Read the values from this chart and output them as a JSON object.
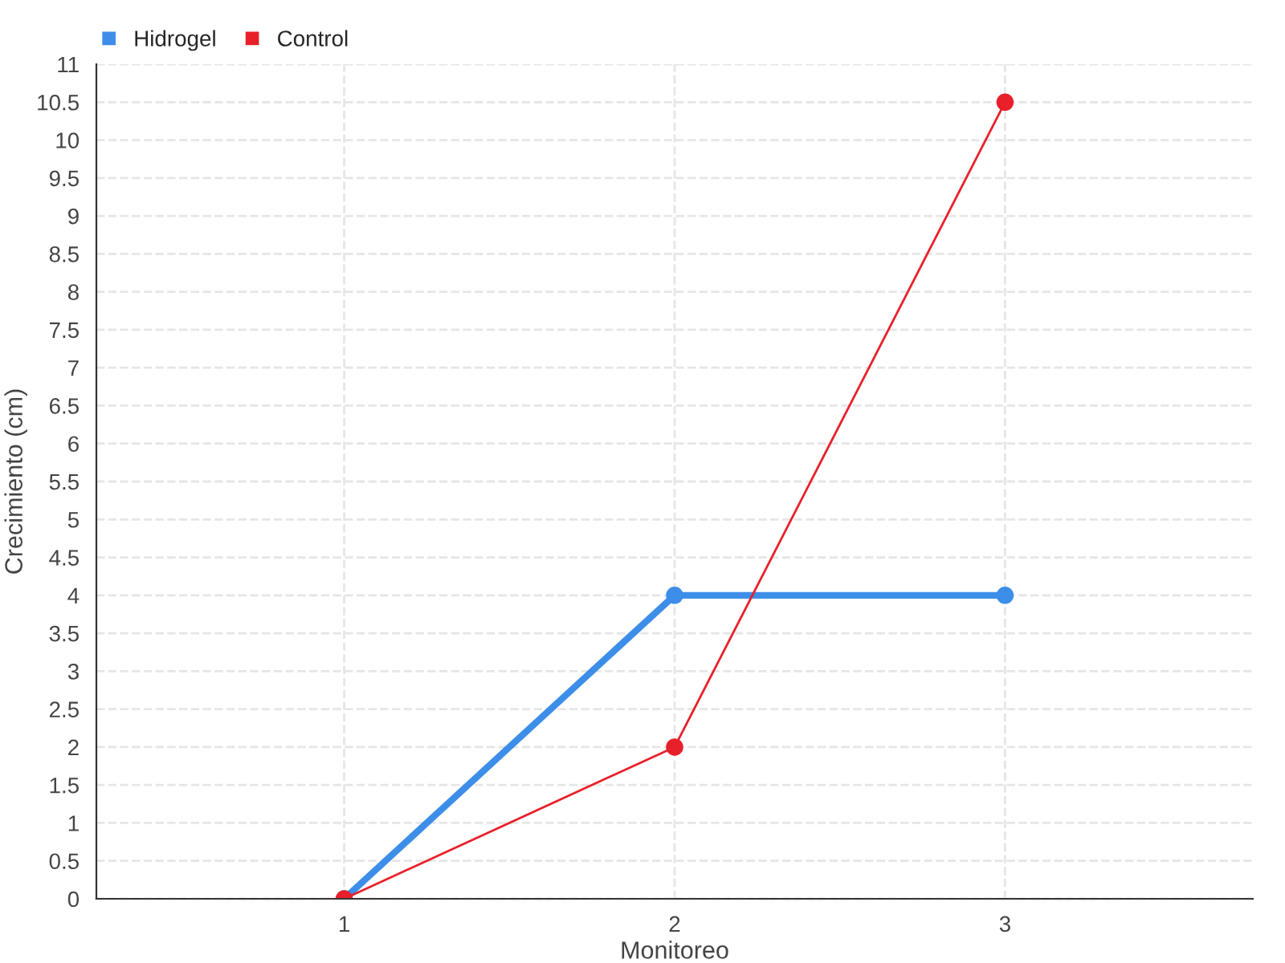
{
  "chart_data": {
    "type": "line",
    "xlabel": "Monitoreo",
    "ylabel": "Crecimiento (cm)",
    "categories": [
      "1",
      "2",
      "3"
    ],
    "series": [
      {
        "name": "Hidrogel",
        "color": "#3d8ee8",
        "values": [
          0,
          4,
          4
        ]
      },
      {
        "name": "Control",
        "color": "#e8202a",
        "values": [
          0,
          2,
          10.5
        ]
      }
    ],
    "ylim": [
      0,
      11
    ],
    "yticks": [
      0,
      0.5,
      1,
      1.5,
      2,
      2.5,
      3,
      3.5,
      4,
      4.5,
      5,
      5.5,
      6,
      6.5,
      7,
      7.5,
      8,
      8.5,
      9,
      9.5,
      10,
      10.5,
      11
    ],
    "grid": true,
    "legend": "top left",
    "marker": "circle"
  }
}
